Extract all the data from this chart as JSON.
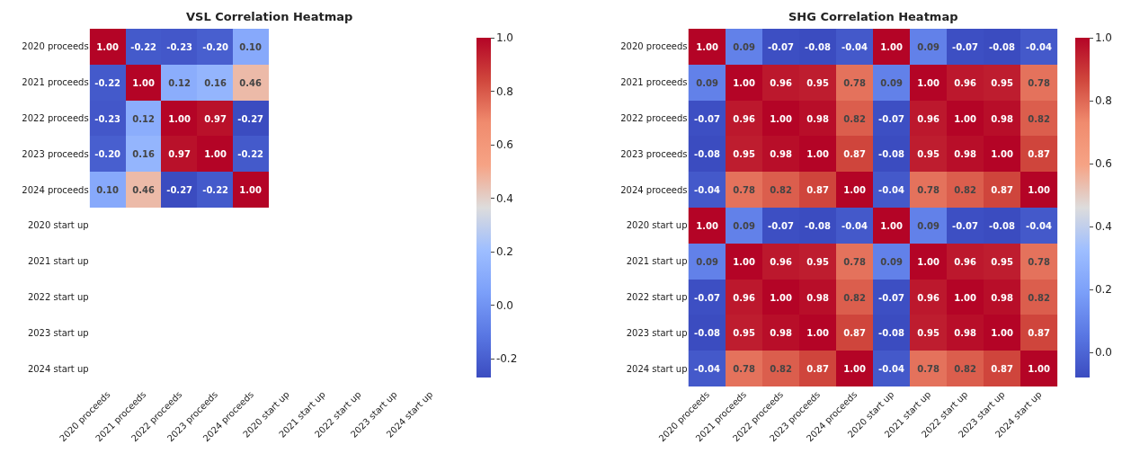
{
  "chart_data": [
    {
      "type": "heatmap",
      "title": "VSL Correlation Heatmap",
      "categories": [
        "2020 proceeds",
        "2021 proceeds",
        "2022 proceeds",
        "2023 proceeds",
        "2024 proceeds",
        "2020 start up",
        "2021 start up",
        "2022 start up",
        "2023 start up",
        "2024 start up"
      ],
      "y_categories": [
        "2020 proceeds",
        "2021 proceeds",
        "2022 proceeds",
        "2023 proceeds",
        "2024 proceeds",
        "2020 start up",
        "2021 start up",
        "2022 start up",
        "2023 start up",
        "2024 start up"
      ],
      "cells": [
        [
          1.0,
          -0.22,
          -0.23,
          -0.2,
          0.1,
          null,
          null,
          null,
          null,
          null
        ],
        [
          -0.22,
          1.0,
          0.12,
          0.16,
          0.46,
          null,
          null,
          null,
          null,
          null
        ],
        [
          -0.23,
          0.12,
          1.0,
          0.97,
          -0.27,
          null,
          null,
          null,
          null,
          null
        ],
        [
          -0.2,
          0.16,
          0.97,
          1.0,
          -0.22,
          null,
          null,
          null,
          null,
          null
        ],
        [
          0.1,
          0.46,
          -0.27,
          -0.22,
          1.0,
          null,
          null,
          null,
          null,
          null
        ],
        [
          null,
          null,
          null,
          null,
          null,
          null,
          null,
          null,
          null,
          null
        ],
        [
          null,
          null,
          null,
          null,
          null,
          null,
          null,
          null,
          null,
          null
        ],
        [
          null,
          null,
          null,
          null,
          null,
          null,
          null,
          null,
          null,
          null
        ],
        [
          null,
          null,
          null,
          null,
          null,
          null,
          null,
          null,
          null,
          null
        ],
        [
          null,
          null,
          null,
          null,
          null,
          null,
          null,
          null,
          null,
          null
        ]
      ],
      "cell_labels": [
        [
          "1.00",
          "-0.22",
          "-0.23",
          "-0.20",
          "0.10",
          null,
          null,
          null,
          null,
          null
        ],
        [
          "-0.22",
          "1.00",
          "0.12",
          "0.16",
          "0.46",
          null,
          null,
          null,
          null,
          null
        ],
        [
          "-0.23",
          "0.12",
          "1.00",
          "0.97",
          "-0.27",
          null,
          null,
          null,
          null,
          null
        ],
        [
          "-0.20",
          "0.16",
          "0.97",
          "1.00",
          "-0.22",
          null,
          null,
          null,
          null,
          null
        ],
        [
          "0.10",
          "0.46",
          "-0.27",
          "-0.22",
          "1.00",
          null,
          null,
          null,
          null,
          null
        ],
        [
          null,
          null,
          null,
          null,
          null,
          null,
          null,
          null,
          null,
          null
        ],
        [
          null,
          null,
          null,
          null,
          null,
          null,
          null,
          null,
          null,
          null
        ],
        [
          null,
          null,
          null,
          null,
          null,
          null,
          null,
          null,
          null,
          null
        ],
        [
          null,
          null,
          null,
          null,
          null,
          null,
          null,
          null,
          null,
          null
        ],
        [
          null,
          null,
          null,
          null,
          null,
          null,
          null,
          null,
          null,
          null
        ]
      ],
      "clim": [
        -0.27,
        1.0
      ],
      "cticks": [
        {
          "value": -0.2,
          "label": "-0.2"
        },
        {
          "value": 0.0,
          "label": "0.0"
        },
        0.2,
        0.4,
        0.6,
        0.8,
        {
          "value": 1.0,
          "label": "1.0"
        }
      ]
    },
    {
      "type": "heatmap",
      "title": "SHG Correlation Heatmap",
      "categories": [
        "2020 proceeds",
        "2021 proceeds",
        "2022 proceeds",
        "2023 proceeds",
        "2024 proceeds",
        "2020 start up",
        "2021 start up",
        "2022 start up",
        "2023 start up",
        "2024 start up"
      ],
      "y_categories": [
        "2020 proceeds",
        "2021 proceeds",
        "2022 proceeds",
        "2023 proceeds",
        "2024 proceeds",
        "2020 start up",
        "2021 start up",
        "2022 start up",
        "2023 start up",
        "2024 start up"
      ],
      "cells": [
        [
          1.0,
          0.09,
          -0.07,
          -0.08,
          -0.04,
          1.0,
          0.09,
          -0.07,
          -0.08,
          -0.04
        ],
        [
          0.09,
          1.0,
          0.96,
          0.95,
          0.78,
          0.09,
          1.0,
          0.96,
          0.95,
          0.78
        ],
        [
          -0.07,
          0.96,
          1.0,
          0.98,
          0.82,
          -0.07,
          0.96,
          1.0,
          0.98,
          0.82
        ],
        [
          -0.08,
          0.95,
          0.98,
          1.0,
          0.87,
          -0.08,
          0.95,
          0.98,
          1.0,
          0.87
        ],
        [
          -0.04,
          0.78,
          0.82,
          0.87,
          1.0,
          -0.04,
          0.78,
          0.82,
          0.87,
          1.0
        ],
        [
          1.0,
          0.09,
          -0.07,
          -0.08,
          -0.04,
          1.0,
          0.09,
          -0.07,
          -0.08,
          -0.04
        ],
        [
          0.09,
          1.0,
          0.96,
          0.95,
          0.78,
          0.09,
          1.0,
          0.96,
          0.95,
          0.78
        ],
        [
          -0.07,
          0.96,
          1.0,
          0.98,
          0.82,
          -0.07,
          0.96,
          1.0,
          0.98,
          0.82
        ],
        [
          -0.08,
          0.95,
          0.98,
          1.0,
          0.87,
          -0.08,
          0.95,
          0.98,
          1.0,
          0.87
        ],
        [
          -0.04,
          0.78,
          0.82,
          0.87,
          1.0,
          -0.04,
          0.78,
          0.82,
          0.87,
          1.0
        ]
      ],
      "cell_labels": [
        [
          "1.00",
          "0.09",
          "-0.07",
          "-0.08",
          "-0.04",
          "1.00",
          "0.09",
          "-0.07",
          "-0.08",
          "-0.04"
        ],
        [
          "0.09",
          "1.00",
          "0.96",
          "0.95",
          "0.78",
          "0.09",
          "1.00",
          "0.96",
          "0.95",
          "0.78"
        ],
        [
          "-0.07",
          "0.96",
          "1.00",
          "0.98",
          "0.82",
          "-0.07",
          "0.96",
          "1.00",
          "0.98",
          "0.82"
        ],
        [
          "-0.08",
          "0.95",
          "0.98",
          "1.00",
          "0.87",
          "-0.08",
          "0.95",
          "0.98",
          "1.00",
          "0.87"
        ],
        [
          "-0.04",
          "0.78",
          "0.82",
          "0.87",
          "1.00",
          "-0.04",
          "0.78",
          "0.82",
          "0.87",
          "1.00"
        ],
        [
          "1.00",
          "0.09",
          "-0.07",
          "-0.08",
          "-0.04",
          "1.00",
          "0.09",
          "-0.07",
          "-0.08",
          "-0.04"
        ],
        [
          "0.09",
          "1.00",
          "0.96",
          "0.95",
          "0.78",
          "0.09",
          "1.00",
          "0.96",
          "0.95",
          "0.78"
        ],
        [
          "-0.07",
          "0.96",
          "1.00",
          "0.98",
          "0.82",
          "-0.07",
          "0.96",
          "1.00",
          "0.98",
          "0.82"
        ],
        [
          "-0.08",
          "0.95",
          "0.98",
          "1.00",
          "0.87",
          "-0.08",
          "0.95",
          "0.98",
          "1.00",
          "0.87"
        ],
        [
          "-0.04",
          "0.78",
          "0.82",
          "0.87",
          "1.00",
          "-0.04",
          "0.78",
          "0.82",
          "0.87",
          "1.00"
        ]
      ],
      "clim": [
        -0.08,
        1.0
      ],
      "cticks": [
        {
          "value": 0.0,
          "label": "0.0"
        },
        0.2,
        0.4,
        0.6,
        0.8,
        {
          "value": 1.0,
          "label": "1.0"
        }
      ]
    }
  ]
}
